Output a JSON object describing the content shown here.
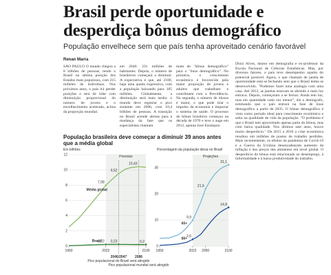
{
  "header": {
    "title": "Brasil perde oportunidade e desperdiça bônus demográfico",
    "subtitle": "População envelhece sem que país tenha aproveitado cenário favorável",
    "byline": "Renan Marra"
  },
  "article": {
    "columns": [
      "SÃO PAULO O mundo chegou a 8 bilhões de pessoas, tendo o Brasil na sétima posição dos Estados mais populosos, com 215 milhões de indivíduos. Nos próximos anos, o país irá perder posições e terá de lidar com diminuição proporcional do número de jovens e o envelhecimento acelerado, acima da proporção mundial.",
      "em 2046: 231 milhões de habitantes. Depois, o número de brasileiros começará a diminuir. A expectativa é que, até 2100, haja uma queda expressiva, com a população baixando para 185 milhões. Globalmente, a diminuição será mais tardia: o mundo deve registrar o pico somente em 2086, com 10,4 bilhões de pessoas. A transição no Brasil acende alertas para a mudança da fase que os especialistas chamam",
      "mam de \"bônus demográfico\" para o \"ônus demográfico\". No primeiro, o crescimento econômico é favorecido pela maior proporção de jovens e adultos que trabalham e contribuem com a Previdência. Na segunda, o número de idosos é maior, o que pode tirar o impulso da economia e impactar o sistema de saúde. O processo do bônus brasileiro começou na década de 1970 e teve o auge em 2012, aponta José Eustáquio",
      "Diniz Alves, doutor em demografia e ex-professor da Escola Nacional de Ciências Estatísticas. Mas, por diversos fatores, o país teve desempenho aquém do potencial possível. Agora, o que chamam de janela de oportunidade está se fechando sem que o Brasil tenha se desenvolvido. \"Podemos fazer uma analogia com uma casa. Até 2012, as janelas estavam se abrindo e mais luz entrava. Depois, começaram a se fechar. Ainda tem luz, mas em quantidade cada vez menor\", diz o demógrafo, estimando que o país entrará na fase de ônus demográfico a partir de 2035. O bônus demográfico é visto como período ideal para crescimento econômico e salto na qualidade de vida da população. \"O problema é que o Brasil tem aproveitado apenas parte do bônus, mas com baixa qualidade. Nos últimos sete anos, houve muito desperdício.\" De 2015 a 2016 a crise econômica resultou em milhões de postos de trabalho perdidos. Mais recentemente, os efeitos da pandemia de Covid-19 e a Guerra da Ucrânia desencadearam aumento da inflação e dos preços dos alimentos em nível global. O desperdício do bônus está relacionado ao desemprego, à informalidade e à baixa produtividade do trabalho."
    ]
  },
  "graphic": {
    "title": "População brasileira deve começar a diminuir 39 anos antes que a média global"
  },
  "chart_data": [
    {
      "type": "line",
      "y_label": "Em bilhões",
      "forecast_label": "Previsão",
      "x": [
        1950,
        1970,
        1990,
        2000,
        2010,
        2022,
        2030,
        2040,
        2047,
        2060,
        2070,
        2086,
        2100
      ],
      "series": [
        {
          "name": "Média global",
          "color": "#8dbb6a",
          "values": [
            2.5,
            3.7,
            5.3,
            6.1,
            6.9,
            7.98,
            8.5,
            9.1,
            9.52,
            10.1,
            10.3,
            10.43,
            10.35
          ],
          "value_labels": [
            null,
            null,
            null,
            null,
            null,
            "7,98",
            null,
            null,
            "9,52",
            null,
            null,
            "10,43",
            null
          ]
        },
        {
          "name": "Brasil",
          "color": "#2e7d32",
          "values": [
            0.05,
            0.1,
            0.15,
            0.17,
            0.2,
            0.22,
            0.225,
            0.23,
            0.23,
            0.225,
            0.215,
            0.205,
            0.2
          ],
          "value_labels": [
            null,
            null,
            null,
            null,
            null,
            "0,22",
            null,
            null,
            "0,23",
            null,
            null,
            null,
            "0,2"
          ]
        }
      ],
      "xlim": [
        1950,
        2100
      ],
      "xticks": [
        1950,
        2022,
        2100
      ],
      "ylim": [
        0,
        12
      ],
      "yticks": [
        0,
        2,
        4,
        6,
        8,
        10,
        12
      ],
      "peaks": [
        {
          "x": 2047,
          "label": "2046/2047",
          "text": "Pico populacional do Brasil será atingido"
        },
        {
          "x": 2086,
          "label": "2086",
          "text": "Pico populacional mundial será atingido"
        }
      ]
    },
    {
      "type": "line",
      "title": "Porcentagem da população idosa no Brasil",
      "forecast_label": "Projeções",
      "x": [
        1950,
        1970,
        1990,
        2000,
        2010,
        2022,
        2030,
        2040,
        2050,
        2060,
        2070,
        2080,
        2090,
        2100
      ],
      "series": [
        {
          "name": "65+",
          "color": "#7ab8d9",
          "values": [
            3,
            3.1,
            4.3,
            5.5,
            7.3,
            9.9,
            13,
            17,
            21.9,
            25,
            27.5,
            29.3,
            30.4,
            31.1
          ],
          "value_labels": [
            null,
            null,
            null,
            null,
            null,
            "9,9",
            null,
            null,
            "21,9",
            null,
            null,
            null,
            null,
            "31,1"
          ]
        },
        {
          "name": "80+",
          "color": "#1f4e9c",
          "values": [
            0.3,
            0.5,
            0.8,
            1.1,
            1.5,
            2.6,
            3.3,
            4.6,
            6.8,
            9,
            11,
            12.7,
            13.9,
            14.8
          ],
          "value_labels": [
            null,
            null,
            null,
            null,
            null,
            "2,6",
            null,
            null,
            null,
            null,
            null,
            null,
            null,
            "14,8"
          ]
        }
      ],
      "xlim": [
        1950,
        2100
      ],
      "xticks": [
        1950,
        2022,
        2050,
        2100
      ],
      "ylim": [
        0,
        35
      ],
      "yticks": [
        0,
        10,
        20,
        30
      ]
    }
  ]
}
